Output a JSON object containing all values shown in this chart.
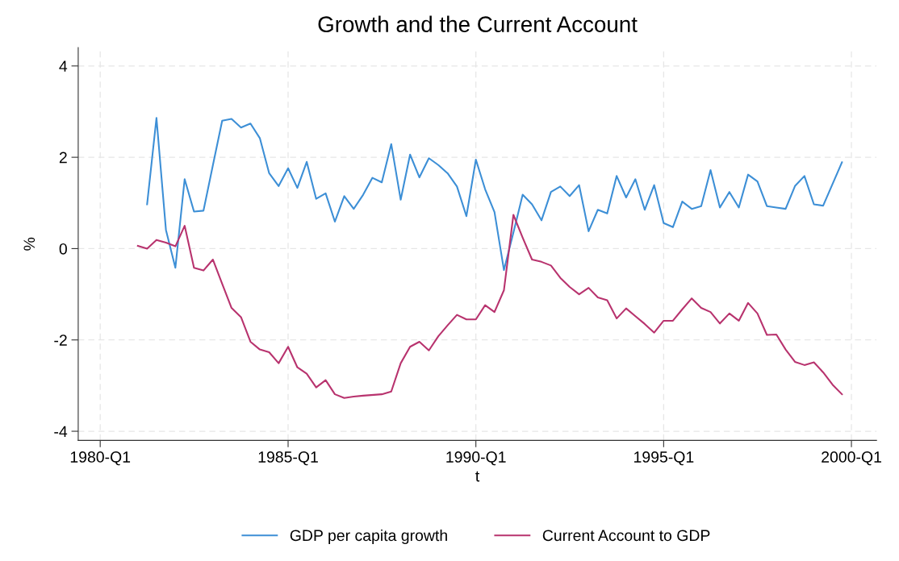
{
  "chart_data": {
    "type": "line",
    "title": "Growth and the Current Account",
    "xlabel": "t",
    "ylabel": "%",
    "xlim": [
      "1979-06",
      "2000-09"
    ],
    "ylim": [
      -4.2,
      4.4
    ],
    "xticks": [
      {
        "value": "1980-01",
        "label": "1980-Q1"
      },
      {
        "value": "1985-01",
        "label": "1985-Q1"
      },
      {
        "value": "1990-01",
        "label": "1990-Q1"
      },
      {
        "value": "1995-01",
        "label": "1995-Q1"
      },
      {
        "value": "2000-01",
        "label": "2000-Q1"
      }
    ],
    "yticks": [
      -4,
      -2,
      0,
      2,
      4
    ],
    "grid": true,
    "legend": "bottom",
    "line_style": "solid",
    "marker": "none",
    "series": [
      {
        "name": "GDP per capita growth",
        "color": "#3d8fd6",
        "x": [
          "1981-04",
          "1981-07",
          "1981-10",
          "1982-01",
          "1982-04",
          "1982-07",
          "1982-10",
          "1983-01",
          "1983-04",
          "1983-07",
          "1983-10",
          "1984-01",
          "1984-04",
          "1984-07",
          "1984-10",
          "1985-01",
          "1985-04",
          "1985-07",
          "1985-10",
          "1986-01",
          "1986-04",
          "1986-07",
          "1986-10",
          "1987-01",
          "1987-04",
          "1987-07",
          "1987-10",
          "1988-01",
          "1988-04",
          "1988-07",
          "1988-10",
          "1989-01",
          "1989-04",
          "1989-07",
          "1989-10",
          "1990-01",
          "1990-04",
          "1990-07",
          "1990-10",
          "1991-01",
          "1991-04",
          "1991-07",
          "1991-10",
          "1992-01",
          "1992-04",
          "1992-07",
          "1992-10",
          "1993-01",
          "1993-04",
          "1993-07",
          "1993-10",
          "1994-01",
          "1994-04",
          "1994-07",
          "1994-10",
          "1995-01",
          "1995-04",
          "1995-07",
          "1995-10",
          "1996-01",
          "1996-04",
          "1996-07",
          "1996-10",
          "1997-01",
          "1997-04",
          "1997-07",
          "1997-10",
          "1998-01",
          "1998-04",
          "1998-07",
          "1998-10",
          "1999-01",
          "1999-04",
          "1999-10"
        ],
        "values": [
          0.97,
          2.86,
          0.41,
          -0.42,
          1.52,
          0.81,
          0.83,
          1.83,
          2.8,
          2.84,
          2.65,
          2.74,
          2.42,
          1.65,
          1.37,
          1.76,
          1.33,
          1.9,
          1.09,
          1.21,
          0.59,
          1.15,
          0.87,
          1.18,
          1.55,
          1.45,
          2.29,
          1.07,
          2.06,
          1.56,
          1.98,
          1.83,
          1.65,
          1.36,
          0.71,
          1.95,
          1.3,
          0.8,
          -0.47,
          0.35,
          1.18,
          0.97,
          0.62,
          1.24,
          1.36,
          1.15,
          1.39,
          0.38,
          0.85,
          0.77,
          1.59,
          1.12,
          1.52,
          0.85,
          1.39,
          0.56,
          0.47,
          1.03,
          0.87,
          0.93,
          1.72,
          0.9,
          1.24,
          0.9,
          1.62,
          1.47,
          0.93,
          0.9,
          0.87,
          1.37,
          1.59,
          0.97,
          0.94,
          1.89
        ]
      },
      {
        "name": "Current Account to GDP",
        "color": "#b8336e",
        "x": [
          "1981-01",
          "1981-04",
          "1981-07",
          "1981-10",
          "1982-01",
          "1982-04",
          "1982-07",
          "1982-10",
          "1983-01",
          "1983-04",
          "1983-07",
          "1983-10",
          "1984-01",
          "1984-04",
          "1984-07",
          "1984-10",
          "1985-01",
          "1985-04",
          "1985-07",
          "1985-10",
          "1986-01",
          "1986-04",
          "1986-07",
          "1986-10",
          "1987-01",
          "1987-07",
          "1987-10",
          "1988-01",
          "1988-04",
          "1988-07",
          "1988-10",
          "1989-01",
          "1989-04",
          "1989-07",
          "1989-10",
          "1990-01",
          "1990-04",
          "1990-07",
          "1990-10",
          "1991-01",
          "1991-04",
          "1991-07",
          "1991-10",
          "1992-01",
          "1992-04",
          "1992-07",
          "1992-10",
          "1993-01",
          "1993-04",
          "1993-07",
          "1993-10",
          "1994-01",
          "1994-04",
          "1994-07",
          "1994-10",
          "1995-01",
          "1995-04",
          "1995-07",
          "1995-10",
          "1996-01",
          "1996-04",
          "1996-07",
          "1996-10",
          "1997-01",
          "1997-04",
          "1997-07",
          "1997-10",
          "1998-01",
          "1998-04",
          "1998-07",
          "1998-10",
          "1999-01",
          "1999-04",
          "1999-07",
          "1999-10"
        ],
        "values": [
          0.06,
          0.0,
          0.19,
          0.13,
          0.05,
          0.5,
          -0.42,
          -0.48,
          -0.24,
          -0.77,
          -1.3,
          -1.5,
          -2.04,
          -2.21,
          -2.27,
          -2.51,
          -2.15,
          -2.6,
          -2.74,
          -3.04,
          -2.88,
          -3.19,
          -3.27,
          -3.24,
          -3.22,
          -3.19,
          -3.13,
          -2.51,
          -2.15,
          -2.04,
          -2.23,
          -1.92,
          -1.68,
          -1.45,
          -1.55,
          -1.55,
          -1.24,
          -1.39,
          -0.91,
          0.74,
          0.24,
          -0.24,
          -0.29,
          -0.37,
          -0.64,
          -0.84,
          -1.0,
          -0.86,
          -1.07,
          -1.13,
          -1.53,
          -1.31,
          -1.48,
          -1.65,
          -1.84,
          -1.58,
          -1.58,
          -1.33,
          -1.09,
          -1.3,
          -1.39,
          -1.64,
          -1.42,
          -1.58,
          -1.19,
          -1.42,
          -1.89,
          -1.88,
          -2.21,
          -2.48,
          -2.55,
          -2.49,
          -2.71,
          -2.98,
          -3.19
        ]
      }
    ]
  }
}
